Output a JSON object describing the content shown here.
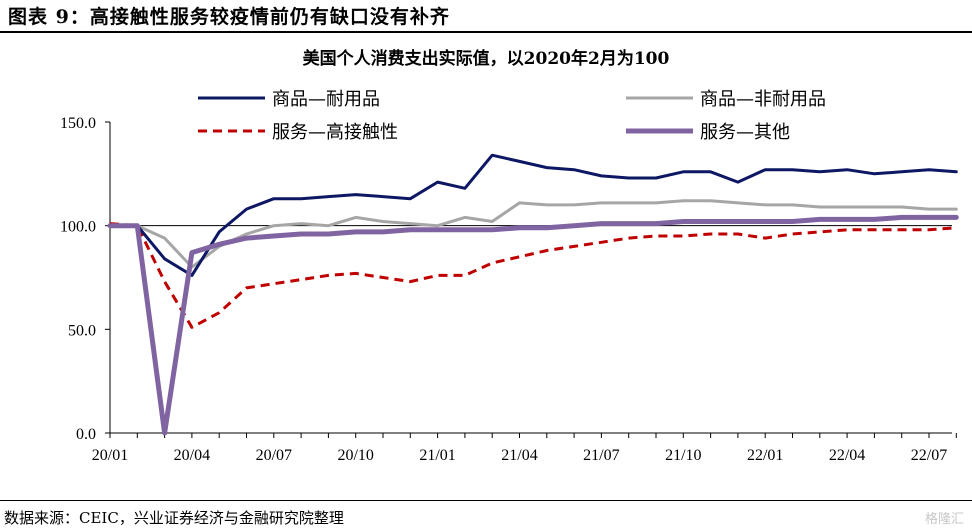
{
  "figure_title": "图表 9：高接触性服务较疫情前仍有缺口没有补齐",
  "source": "数据来源：CEIC，兴业证券经济与金融研究院整理",
  "watermark": "格隆汇",
  "colors": {
    "goods_durable": "#0d1763",
    "goods_nondurable": "#a6a6a6",
    "services_high_contact": "#c00000",
    "services_other": "#8064a2"
  },
  "chart_data": {
    "type": "line",
    "title": "美国个人消费支出实际值，以2020年2月为100",
    "xlabel": "",
    "ylabel": "",
    "ylim": [
      0,
      150
    ],
    "yticks": [
      "150.0",
      "100.0",
      "50.0",
      "0.0"
    ],
    "ytick_values": [
      150,
      100,
      50,
      0
    ],
    "xticks": [
      "20/01",
      "20/04",
      "20/07",
      "20/10",
      "21/01",
      "21/04",
      "21/07",
      "21/10",
      "22/01",
      "22/04",
      "22/07"
    ],
    "xtick_index": [
      0,
      3,
      6,
      9,
      12,
      15,
      18,
      21,
      24,
      27,
      30
    ],
    "x": [
      "20/01",
      "20/02",
      "20/03",
      "20/04",
      "20/05",
      "20/06",
      "20/07",
      "20/08",
      "20/09",
      "20/10",
      "20/11",
      "20/12",
      "21/01",
      "21/02",
      "21/03",
      "21/04",
      "21/05",
      "21/06",
      "21/07",
      "21/08",
      "21/09",
      "21/10",
      "21/11",
      "21/12",
      "22/01",
      "22/02",
      "22/03",
      "22/04",
      "22/05",
      "22/06",
      "22/07",
      "22/08"
    ],
    "legend_position": "top",
    "series": [
      {
        "name": "商品—耐用品",
        "color_key": "goods_durable",
        "style": "solid",
        "values": [
          100,
          100,
          84,
          76,
          97,
          108,
          113,
          113,
          114,
          115,
          114,
          113,
          121,
          118,
          134,
          131,
          128,
          127,
          124,
          123,
          123,
          126,
          126,
          121,
          127,
          127,
          126,
          127,
          125,
          126,
          127,
          126
        ]
      },
      {
        "name": "商品—非耐用品",
        "color_key": "goods_nondurable",
        "style": "solid",
        "values": [
          100,
          100,
          94,
          80,
          90,
          96,
          100,
          101,
          100,
          104,
          102,
          101,
          100,
          104,
          102,
          111,
          110,
          110,
          111,
          111,
          111,
          112,
          112,
          111,
          110,
          110,
          109,
          109,
          109,
          109,
          108,
          108
        ]
      },
      {
        "name": "服务—高接触性",
        "color_key": "services_high_contact",
        "style": "dashed",
        "values": [
          101,
          100,
          73,
          51,
          58,
          70,
          72,
          74,
          76,
          77,
          75,
          73,
          76,
          76,
          82,
          85,
          88,
          90,
          92,
          94,
          95,
          95,
          96,
          96,
          94,
          96,
          97,
          98,
          98,
          98,
          98,
          99
        ]
      },
      {
        "name": "服务—其他",
        "color_key": "services_other",
        "style": "solid",
        "values": [
          100,
          100,
          0,
          87,
          91,
          94,
          95,
          96,
          96,
          97,
          97,
          98,
          98,
          98,
          98,
          99,
          99,
          100,
          101,
          101,
          101,
          102,
          102,
          102,
          102,
          102,
          103,
          103,
          103,
          104,
          104,
          104
        ]
      }
    ]
  }
}
